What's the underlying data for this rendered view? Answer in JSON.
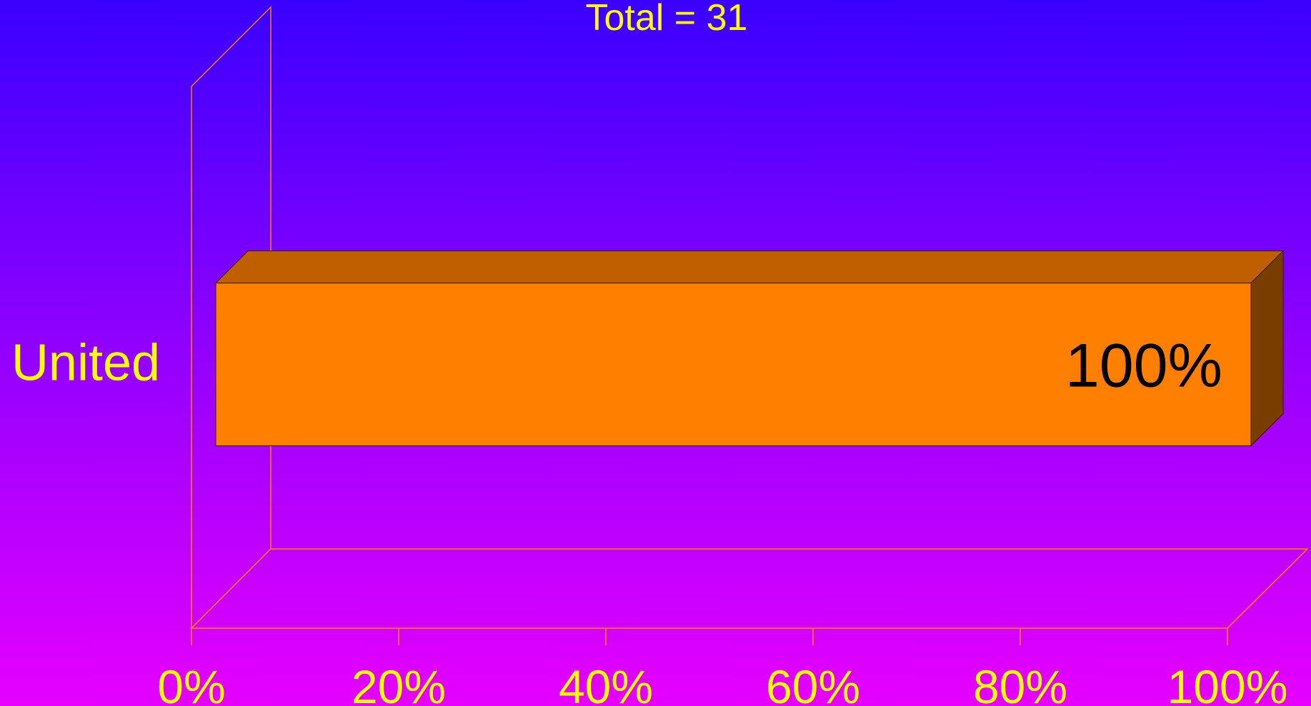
{
  "chart_data": {
    "type": "bar",
    "orientation": "horizontal",
    "title": "Total = 31",
    "categories": [
      "United"
    ],
    "values": [
      100
    ],
    "data_labels": [
      "100%"
    ],
    "xlim": [
      0,
      100
    ],
    "x_ticks": [
      0,
      20,
      40,
      60,
      80,
      100
    ],
    "x_tick_labels": [
      "0%",
      "20%",
      "40%",
      "60%",
      "80%",
      "100%"
    ],
    "legend": "none",
    "grid": false,
    "colors": {
      "bar_front": "#ff8000",
      "bar_top": "#c05f00",
      "bar_side": "#7a3d00",
      "axis": "#ff8000",
      "text": "#ffff00",
      "data_label": "#000000"
    }
  }
}
